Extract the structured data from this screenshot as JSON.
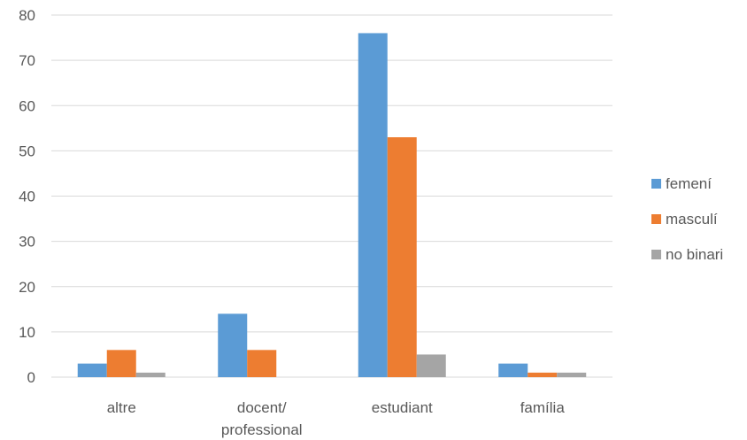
{
  "chart_data": {
    "type": "bar",
    "categories": [
      [
        "altre"
      ],
      [
        "docent/",
        "professional"
      ],
      [
        "estudiant"
      ],
      [
        "família"
      ]
    ],
    "series": [
      {
        "name": "femení",
        "color": "#5B9BD5",
        "values": [
          3,
          14,
          76,
          3
        ]
      },
      {
        "name": "masculí",
        "color": "#ED7D31",
        "values": [
          6,
          6,
          53,
          1
        ]
      },
      {
        "name": "no binari",
        "color": "#A5A5A5",
        "values": [
          1,
          0,
          5,
          1
        ]
      }
    ],
    "ylim": [
      0,
      80
    ],
    "yticks": [
      0,
      10,
      20,
      30,
      40,
      50,
      60,
      70,
      80
    ],
    "grid": true,
    "gridline_color": "#D9D9D9",
    "legend_position": "right"
  }
}
